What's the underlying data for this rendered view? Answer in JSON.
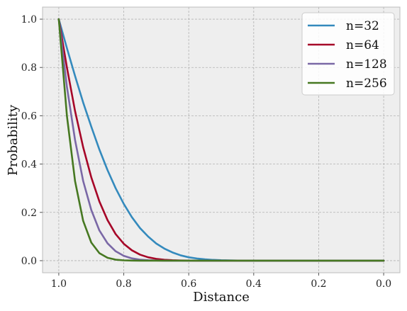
{
  "chart_data": {
    "type": "line",
    "xlabel": "Distance",
    "ylabel": "Probability",
    "xlim": [
      1.05,
      -0.05
    ],
    "ylim": [
      -0.05,
      1.05
    ],
    "x_reversed": true,
    "grid": true,
    "legend_position": "top-right",
    "background": "#eeeeee",
    "xticks": [
      1.0,
      0.8,
      0.6,
      0.4,
      0.2,
      0.0
    ],
    "xtick_labels": [
      "1.0",
      "0.8",
      "0.6",
      "0.4",
      "0.2",
      "0.0"
    ],
    "yticks": [
      0.0,
      0.2,
      0.4,
      0.6,
      0.8,
      1.0
    ],
    "ytick_labels": [
      "0.0",
      "0.2",
      "0.4",
      "0.6",
      "0.8",
      "1.0"
    ],
    "x": [
      1.0,
      0.975,
      0.95,
      0.925,
      0.9,
      0.875,
      0.85,
      0.825,
      0.8,
      0.775,
      0.75,
      0.725,
      0.7,
      0.675,
      0.65,
      0.625,
      0.6,
      0.575,
      0.55,
      0.525,
      0.5,
      0.45,
      0.4,
      0.35,
      0.3,
      0.2,
      0.1,
      0.0
    ],
    "series": [
      {
        "name": "n=32",
        "color": "#348abd",
        "values": [
          1.0,
          0.88,
          0.765,
          0.655,
          0.555,
          0.46,
          0.375,
          0.3,
          0.235,
          0.18,
          0.135,
          0.1,
          0.071,
          0.05,
          0.034,
          0.022,
          0.014,
          0.009,
          0.0055,
          0.0032,
          0.0018,
          0.0005,
          0.0001,
          0.0,
          0.0,
          0.0,
          0.0,
          0.0
        ]
      },
      {
        "name": "n=64",
        "color": "#a60628",
        "values": [
          1.0,
          0.8,
          0.62,
          0.47,
          0.345,
          0.245,
          0.168,
          0.11,
          0.07,
          0.043,
          0.025,
          0.014,
          0.0075,
          0.0038,
          0.0018,
          0.0008,
          0.0003,
          0.0001,
          0.0,
          0.0,
          0.0,
          0.0,
          0.0,
          0.0,
          0.0,
          0.0,
          0.0,
          0.0
        ]
      },
      {
        "name": "n=128",
        "color": "#7a68a6",
        "values": [
          1.0,
          0.72,
          0.5,
          0.33,
          0.21,
          0.125,
          0.072,
          0.039,
          0.02,
          0.0095,
          0.0043,
          0.0018,
          0.0007,
          0.0002,
          0.0,
          0.0,
          0.0,
          0.0,
          0.0,
          0.0,
          0.0,
          0.0,
          0.0,
          0.0,
          0.0,
          0.0,
          0.0,
          0.0
        ]
      },
      {
        "name": "n=256",
        "color": "#467821",
        "values": [
          1.0,
          0.6,
          0.33,
          0.165,
          0.075,
          0.031,
          0.012,
          0.0042,
          0.0013,
          0.0004,
          0.0001,
          0.0,
          0.0,
          0.0,
          0.0,
          0.0,
          0.0,
          0.0,
          0.0,
          0.0,
          0.0,
          0.0,
          0.0,
          0.0,
          0.0,
          0.0,
          0.0,
          0.0
        ]
      }
    ]
  }
}
